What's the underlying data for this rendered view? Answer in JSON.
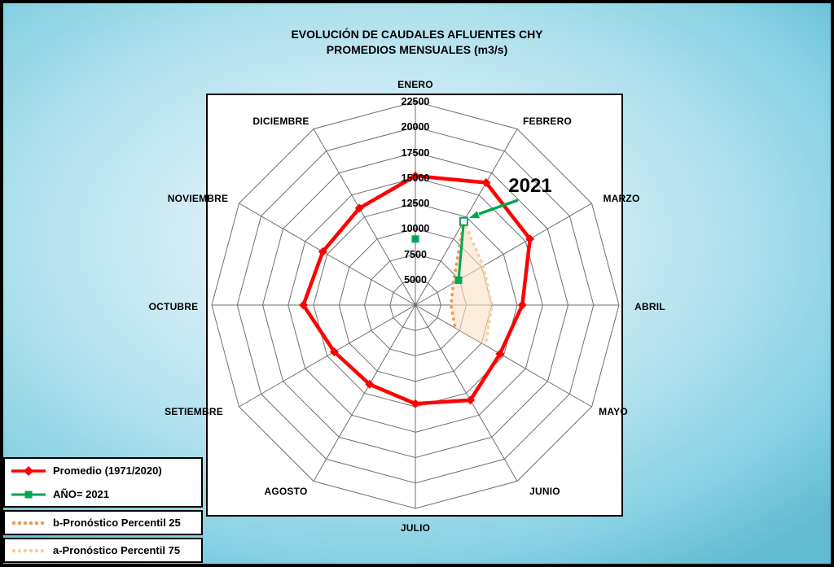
{
  "title": {
    "line1": "EVOLUCIÓN DE CAUDALES AFLUENTES CHY",
    "line2": "PROMEDIOS MENSUALES (m3/s)"
  },
  "chart_data": {
    "type": "radar",
    "title": "EVOLUCIÓN DE CAUDALES AFLUENTES CHY",
    "subtitle": "PROMEDIOS MENSUALES (m3/s)",
    "categories": [
      "ENERO",
      "FEBRERO",
      "MARZO",
      "ABRIL",
      "MAYO",
      "JUNIO",
      "JULIO",
      "AGOSTO",
      "SETIEMBRE",
      "OCTUBRE",
      "NOVIEMBRE",
      "DICIEMBRE"
    ],
    "axis": {
      "min": 2500,
      "max": 22500,
      "tick_step": 2500,
      "ticks": [
        5000,
        7500,
        10000,
        12500,
        15000,
        17500,
        20000,
        22500
      ]
    },
    "series": [
      {
        "name": "Promedio (1971/2020)",
        "color": "#FF0000",
        "marker": "diamond",
        "line_style": "solid",
        "values": [
          15200,
          16400,
          15500,
          13000,
          12100,
          13300,
          12200,
          11500,
          11700,
          13500,
          13000,
          13500
        ]
      },
      {
        "name": "AÑO= 2021",
        "color": "#00A651",
        "marker": "square",
        "line_style": "solid",
        "values": [
          9000,
          12000,
          7400,
          null,
          null,
          null,
          null,
          null,
          null,
          null,
          null,
          null
        ],
        "open_marker_index": 1,
        "line_start_index": 1
      },
      {
        "name": "b-Pronóstico Percentil 25",
        "color": "#F29B56",
        "marker": "dot",
        "line_style": "dotted",
        "values": [
          null,
          12000,
          6800,
          6000,
          7000,
          null,
          null,
          null,
          null,
          null,
          null,
          null
        ]
      },
      {
        "name": "a-Pronóstico Percentil 75",
        "color": "#F8CFA2",
        "marker": "dot",
        "line_style": "dotted",
        "values": [
          null,
          12000,
          10200,
          10000,
          10500,
          null,
          null,
          null,
          null,
          null,
          null,
          null
        ]
      }
    ],
    "band_fill": "#F9DFC4",
    "annotation": {
      "text": "2021"
    },
    "legend_position": "bottom-left",
    "grid": true
  },
  "colors": {
    "background_center": "#eef8fb",
    "background_edge": "#63bbd3",
    "grid": "#6f6f6f",
    "plot_background": "#ffffff"
  }
}
